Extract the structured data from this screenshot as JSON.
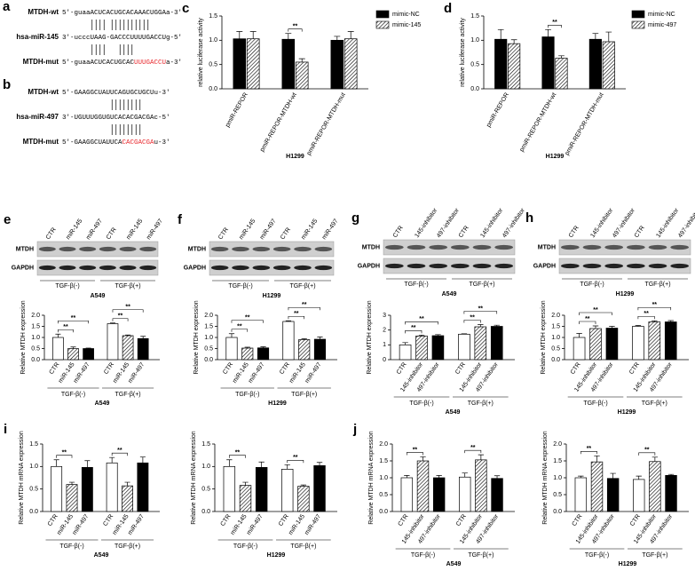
{
  "highlight_color": "#e8262b",
  "sequences": [
    {
      "panel": "a",
      "rows": [
        {
          "label": "MTDH-wt",
          "parts": [
            "5'-guaaACUCACUGCACAAACUGGAa-3'"
          ]
        },
        {
          "label": "hsa-miR-145",
          "parts": [
            "3'-ucccUAAG-GACCCUUUUGACCUg-5'"
          ]
        },
        {
          "label": "MTDH-mut",
          "parts": [
            "5'-guaaACUCACUGCAC",
            "UUUGACCU",
            "a-3'"
          ]
        }
      ]
    },
    {
      "panel": "b",
      "rows": [
        {
          "label": "MTDH-wt",
          "parts": [
            "5'-GAAGGCUAUUCAGUGCUGCUu-3'"
          ]
        },
        {
          "label": "hsa-miR-497",
          "parts": [
            "3'-UGUUUGGUGUCACACGACGAc-5'"
          ]
        },
        {
          "label": "MTDH-mut",
          "parts": [
            "5'-GAAGGCUAUUCA",
            "CACGACGA",
            "u-3'"
          ]
        }
      ]
    }
  ],
  "blots": [
    {
      "lanes": [
        "CTR",
        "miR-145",
        "miR-497",
        "CTR",
        "miR-145",
        "miR-497"
      ],
      "rows": [
        "MTDH",
        "GAPDH"
      ],
      "groups": [
        "TGF-β(-)",
        "TGF-β(+)"
      ],
      "cell": "A549"
    },
    {
      "lanes": [
        "CTR",
        "miR-145",
        "miR-497",
        "CTR",
        "miR-145",
        "miR-497"
      ],
      "rows": [
        "MTDH",
        "GAPDH"
      ],
      "groups": [
        "TGF-β(-)",
        "TGF-β(+)"
      ],
      "cell": "H1299"
    },
    {
      "lanes": [
        "CTR",
        "145-inhibitor",
        "497-inhibitor",
        "CTR",
        "145-inhibitor",
        "497-inhibitor"
      ],
      "rows": [
        "MTDH",
        "GAPDH"
      ],
      "groups": [
        "TGF-β(-)",
        "TGF-β(+)"
      ],
      "cell": "A549"
    },
    {
      "lanes": [
        "CTR",
        "145-inhibitor",
        "497-inhibitor",
        "CTR",
        "145-inhibitor",
        "497-inhibitor"
      ],
      "rows": [
        "MTDH",
        "GAPDH"
      ],
      "groups": [
        "TGF-β(-)",
        "TGF-β(+)"
      ],
      "cell": "H1299"
    }
  ],
  "chart_data": [
    {
      "panel": "c",
      "type": "bar",
      "ylabel": "relative luciferase activity",
      "xlabel": "H1299",
      "categories": [
        "pmiR-REPOR",
        "pmiR-REPOR-MTDH-wt",
        "pmiR-REPOR-MTDH-mut"
      ],
      "series": [
        {
          "name": "mimic-NC",
          "color": "#000000",
          "pattern": "solid",
          "values": [
            1.03,
            1.02,
            1.0
          ],
          "errors": [
            0.15,
            0.12,
            0.08
          ]
        },
        {
          "name": "mimic-145",
          "color": "#000000",
          "pattern": "hatched",
          "values": [
            1.03,
            0.55,
            1.03
          ],
          "errors": [
            0.15,
            0.07,
            0.15
          ]
        }
      ],
      "ylim": [
        0,
        1.5
      ],
      "yticks": [
        {
          "value": 0,
          "label": "0.0"
        },
        0.5,
        {
          "value": 1,
          "label": "1.0"
        },
        1.5
      ],
      "significance": [
        {
          "label": "**",
          "bars": [
            2,
            3
          ]
        }
      ]
    },
    {
      "panel": "d",
      "type": "bar",
      "ylabel": "relative luciferase activity",
      "xlabel": "H1299",
      "categories": [
        "pmiR-REPOR",
        "pmiR-REPOR-MTDH-wt",
        "pmiR-REPOR-MTDH-mut"
      ],
      "series": [
        {
          "name": "mimic-NC",
          "color": "#000000",
          "pattern": "solid",
          "values": [
            1.02,
            1.07,
            1.02
          ],
          "errors": [
            0.2,
            0.15,
            0.12
          ]
        },
        {
          "name": "mimic-497",
          "color": "#000000",
          "pattern": "hatched",
          "values": [
            0.93,
            0.63,
            0.97
          ],
          "errors": [
            0.08,
            0.05,
            0.2
          ]
        }
      ],
      "ylim": [
        0,
        1.5
      ],
      "yticks": [
        {
          "value": 0,
          "label": "0.0"
        },
        0.5,
        {
          "value": 1,
          "label": "1.0"
        },
        1.5
      ],
      "significance": [
        {
          "label": "**",
          "bars": [
            2,
            3
          ]
        }
      ]
    },
    {
      "panel": "e",
      "type": "bar",
      "ylabel": "Relative MTDH expression",
      "xlabel": "A549",
      "groups": [
        "TGF-β(-)",
        "TGF-β(+)"
      ],
      "categories": [
        "CTR",
        "miR-145",
        "miR-497",
        "CTR",
        "miR-145",
        "miR-497"
      ],
      "patterns": [
        "open",
        "hatched",
        "solid",
        "open",
        "hatched",
        "solid"
      ],
      "values": [
        1.0,
        0.5,
        0.5,
        1.62,
        1.08,
        0.95
      ],
      "errors": [
        0.15,
        0.07,
        0.02,
        0.03,
        0.03,
        0.1
      ],
      "ylim": [
        0,
        2
      ],
      "yticks": [
        {
          "value": 0,
          "label": "0.0"
        },
        0.5,
        {
          "value": 1,
          "label": "1.0"
        },
        1.5,
        {
          "value": 2,
          "label": "2.0"
        }
      ],
      "significance": [
        {
          "label": "**",
          "bars": [
            0,
            1
          ]
        },
        {
          "label": "**",
          "bars": [
            0,
            2
          ]
        },
        {
          "label": "**",
          "bars": [
            3,
            4
          ]
        },
        {
          "label": "**",
          "bars": [
            3,
            5
          ]
        }
      ]
    },
    {
      "panel": "f",
      "type": "bar",
      "ylabel": "Relative MTDH expression",
      "xlabel": "H1299",
      "groups": [
        "TGF-β(-)",
        "TGF-β(+)"
      ],
      "categories": [
        "CTR",
        "miR-145",
        "miR-497",
        "CTR",
        "miR-145",
        "miR-497"
      ],
      "patterns": [
        "open",
        "hatched",
        "solid",
        "open",
        "hatched",
        "solid"
      ],
      "values": [
        1.0,
        0.52,
        0.53,
        1.72,
        0.9,
        0.92
      ],
      "errors": [
        0.17,
        0.04,
        0.05,
        0.03,
        0.04,
        0.1
      ],
      "ylim": [
        0,
        2
      ],
      "yticks": [
        {
          "value": 0,
          "label": "0.0"
        },
        0.5,
        {
          "value": 1,
          "label": "1.0"
        },
        1.5,
        {
          "value": 2,
          "label": "2.0"
        }
      ],
      "significance": [
        {
          "label": "**",
          "bars": [
            0,
            1
          ]
        },
        {
          "label": "**",
          "bars": [
            0,
            2
          ]
        },
        {
          "label": "**",
          "bars": [
            3,
            4
          ]
        },
        {
          "label": "**",
          "bars": [
            3,
            5
          ]
        }
      ]
    },
    {
      "panel": "g",
      "type": "bar",
      "ylabel": "Relative MTDH expression",
      "xlabel": "A549",
      "groups": [
        "TGF-β(-)",
        "TGF-β(+)"
      ],
      "categories": [
        "CTR",
        "145-inhibitor",
        "497-inhibitor",
        "CTR",
        "145-inhibitor",
        "497-inhibitor"
      ],
      "patterns": [
        "open",
        "hatched",
        "solid",
        "open",
        "hatched",
        "solid"
      ],
      "values": [
        1.0,
        1.6,
        1.62,
        1.72,
        2.22,
        2.25
      ],
      "errors": [
        0.15,
        0.06,
        0.07,
        0.03,
        0.15,
        0.08
      ],
      "ylim": [
        0,
        3
      ],
      "yticks": [
        0,
        1,
        2,
        3
      ],
      "significance": [
        {
          "label": "**",
          "bars": [
            0,
            1
          ]
        },
        {
          "label": "**",
          "bars": [
            0,
            2
          ]
        },
        {
          "label": "**",
          "bars": [
            3,
            4
          ]
        },
        {
          "label": "**",
          "bars": [
            3,
            5
          ]
        }
      ]
    },
    {
      "panel": "h",
      "type": "bar",
      "ylabel": "Relative MTDH expression",
      "xlabel": "H1299",
      "groups": [
        "TGF-β(-)",
        "TGF-β(+)"
      ],
      "categories": [
        "CTR",
        "145-inhibitor",
        "497-inhibitor",
        "CTR",
        "145-inhibitor",
        "497-inhibitor"
      ],
      "patterns": [
        "open",
        "hatched",
        "solid",
        "open",
        "hatched",
        "solid"
      ],
      "values": [
        1.0,
        1.4,
        1.42,
        1.5,
        1.7,
        1.7
      ],
      "errors": [
        0.18,
        0.12,
        0.08,
        0.04,
        0.05,
        0.06
      ],
      "ylim": [
        0,
        2
      ],
      "yticks": [
        {
          "value": 0,
          "label": "0.0"
        },
        0.5,
        {
          "value": 1,
          "label": "1.0"
        },
        1.5,
        {
          "value": 2,
          "label": "2.0"
        }
      ],
      "significance": [
        {
          "label": "**",
          "bars": [
            0,
            1
          ]
        },
        {
          "label": "**",
          "bars": [
            0,
            2
          ]
        },
        {
          "label": "**",
          "bars": [
            3,
            4
          ]
        },
        {
          "label": "**",
          "bars": [
            3,
            5
          ]
        }
      ]
    },
    {
      "panel": "i",
      "type": "bar",
      "ylabel": "Relative MTDH mRNA expression",
      "xlabel": "A549",
      "groups": [
        "TGF-β(-)",
        "TGF-β(+)"
      ],
      "categories": [
        "CTR",
        "miR-145",
        "miR-497",
        "CTR",
        "miR-145",
        "miR-497"
      ],
      "patterns": [
        "open",
        "hatched",
        "solid",
        "open",
        "hatched",
        "solid"
      ],
      "values": [
        1.0,
        0.6,
        0.98,
        1.08,
        0.57,
        1.08
      ],
      "errors": [
        0.15,
        0.05,
        0.15,
        0.12,
        0.08,
        0.13
      ],
      "ylim": [
        0,
        1.5
      ],
      "yticks": [
        {
          "value": 0,
          "label": "0.0"
        },
        0.5,
        {
          "value": 1,
          "label": "1.0"
        },
        1.5
      ],
      "significance": [
        {
          "label": "**",
          "bars": [
            0,
            1
          ]
        },
        {
          "label": "**",
          "bars": [
            3,
            4
          ]
        }
      ]
    },
    {
      "type": "bar",
      "ylabel": "Relative MTDH mRNA expression",
      "xlabel": "H1299",
      "groups": [
        "TGF-β(-)",
        "TGF-β(+)"
      ],
      "categories": [
        "CTR",
        "miR-145",
        "miR-497",
        "CTR",
        "miR-145",
        "miR-497"
      ],
      "patterns": [
        "open",
        "hatched",
        "solid",
        "open",
        "hatched",
        "solid"
      ],
      "values": [
        1.0,
        0.58,
        0.98,
        0.94,
        0.56,
        1.02
      ],
      "errors": [
        0.15,
        0.07,
        0.12,
        0.1,
        0.03,
        0.07
      ],
      "ylim": [
        0,
        1.5
      ],
      "yticks": [
        {
          "value": 0,
          "label": "0.0"
        },
        0.5,
        {
          "value": 1,
          "label": "1.0"
        },
        1.5
      ],
      "significance": [
        {
          "label": "**",
          "bars": [
            0,
            1
          ]
        },
        {
          "label": "**",
          "bars": [
            3,
            4
          ]
        }
      ]
    },
    {
      "panel": "j",
      "type": "bar",
      "ylabel": "Relative MTDH mRNA expression",
      "xlabel": "A549",
      "groups": [
        "TGF-β(-)",
        "TGF-β(+)"
      ],
      "categories": [
        "CTR",
        "145-inhibitor",
        "497-inhibitor",
        "CTR",
        "145-inhibitor",
        "497-inhibitor"
      ],
      "patterns": [
        "open",
        "hatched",
        "solid",
        "open",
        "hatched",
        "solid"
      ],
      "values": [
        1.0,
        1.5,
        1.0,
        1.02,
        1.53,
        0.98
      ],
      "errors": [
        0.07,
        0.12,
        0.07,
        0.12,
        0.15,
        0.08
      ],
      "ylim": [
        0,
        2
      ],
      "yticks": [
        {
          "value": 0,
          "label": "0.0"
        },
        0.5,
        {
          "value": 1,
          "label": "1.0"
        },
        1.5,
        {
          "value": 2,
          "label": "2.0"
        }
      ],
      "significance": [
        {
          "label": "**",
          "bars": [
            0,
            1
          ]
        },
        {
          "label": "**",
          "bars": [
            3,
            4
          ]
        }
      ]
    },
    {
      "type": "bar",
      "ylabel": "Relative MTDH mRNA expression",
      "xlabel": "H1299",
      "groups": [
        "TGF-β(-)",
        "TGF-β(+)"
      ],
      "categories": [
        "CTR",
        "145-inhibitor",
        "497-inhibitor",
        "CTR",
        "145-inhibitor",
        "497-inhibitor"
      ],
      "patterns": [
        "open",
        "hatched",
        "solid",
        "open",
        "hatched",
        "solid"
      ],
      "values": [
        1.0,
        1.47,
        0.98,
        0.95,
        1.48,
        1.07
      ],
      "errors": [
        0.05,
        0.18,
        0.15,
        0.1,
        0.13,
        0.03
      ],
      "ylim": [
        0,
        2
      ],
      "yticks": [
        {
          "value": 0,
          "label": "0.0"
        },
        0.5,
        {
          "value": 1,
          "label": "1.0"
        },
        1.5,
        {
          "value": 2,
          "label": "2.0"
        }
      ],
      "significance": [
        {
          "label": "**",
          "bars": [
            0,
            1
          ]
        },
        {
          "label": "**",
          "bars": [
            3,
            4
          ]
        }
      ]
    }
  ]
}
